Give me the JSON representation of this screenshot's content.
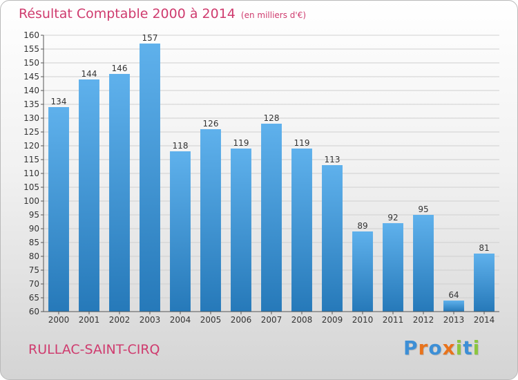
{
  "title": "Résultat Comptable 2000 à 2014",
  "subtitle": "(en milliers d'€)",
  "town": "RULLAC-SAINT-CIRQ",
  "brand": "Proxiti",
  "colors": {
    "title": "#cf3b6e",
    "bar_top": "#5fb1ec",
    "bar_bottom": "#2679b9",
    "brand_letters": [
      "#3d8fd6",
      "#e8731c",
      "#3d8fd6",
      "#e8731c",
      "#8cc63f",
      "#3d8fd6",
      "#8cc63f"
    ]
  },
  "chart_data": {
    "type": "bar",
    "categories": [
      "2000",
      "2001",
      "2002",
      "2003",
      "2004",
      "2005",
      "2006",
      "2007",
      "2008",
      "2009",
      "2010",
      "2011",
      "2012",
      "2013",
      "2014"
    ],
    "values": [
      134,
      144,
      146,
      157,
      118,
      126,
      119,
      128,
      119,
      113,
      89,
      92,
      95,
      64,
      81
    ],
    "ylim": [
      60,
      160
    ],
    "yticks": [
      60,
      65,
      70,
      75,
      80,
      85,
      90,
      95,
      100,
      105,
      110,
      115,
      120,
      125,
      130,
      135,
      140,
      145,
      150,
      155,
      160
    ],
    "grid": true,
    "xlabel": "",
    "ylabel": ""
  }
}
